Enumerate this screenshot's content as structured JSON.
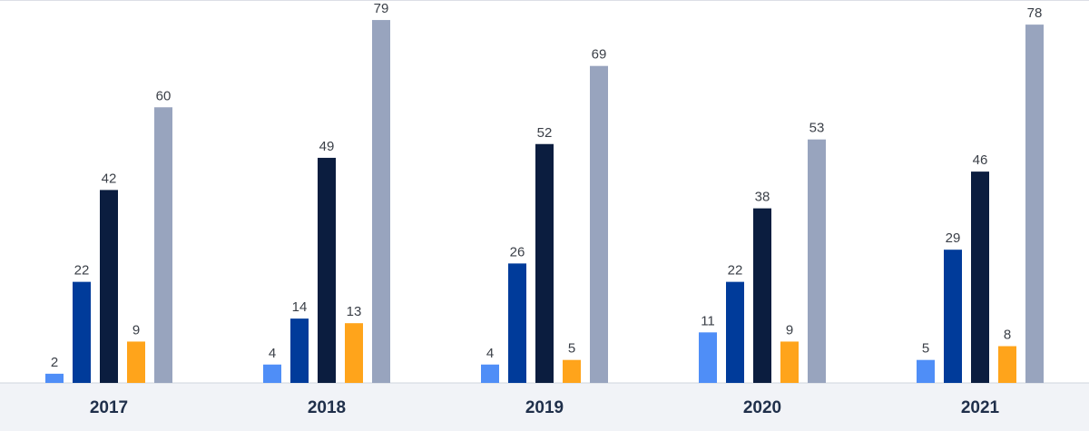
{
  "chart_data": {
    "type": "bar",
    "categories": [
      "2017",
      "2018",
      "2019",
      "2020",
      "2021"
    ],
    "series": [
      {
        "color": "#4f8ef7",
        "values": [
          2,
          4,
          4,
          11,
          5
        ]
      },
      {
        "color": "#003b9a",
        "values": [
          22,
          14,
          26,
          22,
          29
        ]
      },
      {
        "color": "#0b1d3f",
        "values": [
          42,
          49,
          52,
          38,
          46
        ]
      },
      {
        "color": "#ffa41b",
        "values": [
          9,
          13,
          5,
          9,
          8
        ]
      },
      {
        "color": "#98a4be",
        "values": [
          60,
          79,
          69,
          53,
          78
        ]
      }
    ],
    "ylim": [
      0,
      80
    ],
    "grid": false,
    "legend": "none",
    "data_labels": true
  }
}
